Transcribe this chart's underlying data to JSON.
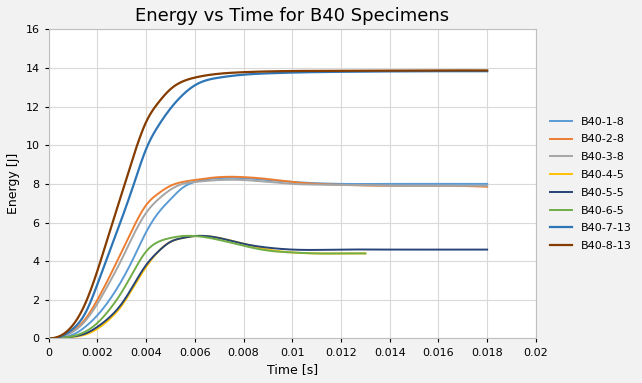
{
  "title": "Energy vs Time for B40 Specimens",
  "xlabel": "Time [s]",
  "ylabel": "Energy [J]",
  "xlim": [
    0,
    0.02
  ],
  "ylim": [
    0,
    16
  ],
  "xticks": [
    0,
    0.002,
    0.004,
    0.006,
    0.008,
    0.01,
    0.012,
    0.014,
    0.016,
    0.018,
    0.02
  ],
  "yticks": [
    0,
    2,
    4,
    6,
    8,
    10,
    12,
    14,
    16
  ],
  "series": [
    {
      "label": "B40-1-8",
      "color": "#5B9BD5",
      "linewidth": 1.4,
      "data_t": [
        0,
        0.0005,
        0.001,
        0.0015,
        0.002,
        0.0025,
        0.003,
        0.0035,
        0.004,
        0.0045,
        0.005,
        0.0055,
        0.006,
        0.007,
        0.008,
        0.009,
        0.01,
        0.012,
        0.014,
        0.016,
        0.018
      ],
      "data_e": [
        0,
        0.05,
        0.2,
        0.6,
        1.2,
        2.0,
        3.0,
        4.2,
        5.5,
        6.5,
        7.2,
        7.8,
        8.1,
        8.3,
        8.3,
        8.2,
        8.1,
        8.0,
        8.0,
        8.0,
        8.0
      ]
    },
    {
      "label": "B40-2-8",
      "color": "#ED7D31",
      "linewidth": 1.4,
      "data_t": [
        0,
        0.0005,
        0.001,
        0.0015,
        0.002,
        0.0025,
        0.003,
        0.0035,
        0.004,
        0.0045,
        0.005,
        0.0055,
        0.006,
        0.007,
        0.008,
        0.009,
        0.01,
        0.012,
        0.014,
        0.016,
        0.018
      ],
      "data_e": [
        0,
        0.1,
        0.4,
        1.0,
        2.0,
        3.2,
        4.5,
        5.8,
        6.9,
        7.5,
        7.9,
        8.1,
        8.2,
        8.35,
        8.35,
        8.25,
        8.1,
        7.95,
        7.9,
        7.9,
        7.85
      ]
    },
    {
      "label": "B40-3-8",
      "color": "#A5A5A5",
      "linewidth": 1.4,
      "data_t": [
        0,
        0.0005,
        0.001,
        0.0015,
        0.002,
        0.0025,
        0.003,
        0.0035,
        0.004,
        0.0045,
        0.005,
        0.0055,
        0.006,
        0.007,
        0.008,
        0.009,
        0.01,
        0.012,
        0.014,
        0.016,
        0.018
      ],
      "data_e": [
        0,
        0.08,
        0.35,
        0.9,
        1.8,
        2.9,
        4.1,
        5.4,
        6.5,
        7.2,
        7.7,
        8.0,
        8.1,
        8.2,
        8.2,
        8.1,
        8.0,
        7.95,
        7.9,
        7.9,
        7.9
      ]
    },
    {
      "label": "B40-4-5",
      "color": "#FFC000",
      "linewidth": 1.4,
      "data_t": [
        0,
        0.0005,
        0.001,
        0.0015,
        0.002,
        0.0025,
        0.003,
        0.0035,
        0.004,
        0.0045,
        0.005,
        0.0055,
        0.006,
        0.007,
        0.008,
        0.009,
        0.01,
        0.011,
        0.012,
        0.013
      ],
      "data_e": [
        0,
        0.02,
        0.08,
        0.2,
        0.5,
        1.0,
        1.7,
        2.7,
        3.7,
        4.5,
        5.0,
        5.2,
        5.3,
        5.2,
        4.9,
        4.6,
        4.45,
        4.4,
        4.4,
        4.4
      ]
    },
    {
      "label": "B40-5-5",
      "color": "#264478",
      "linewidth": 1.4,
      "data_t": [
        0,
        0.0005,
        0.001,
        0.0015,
        0.002,
        0.0025,
        0.003,
        0.0035,
        0.004,
        0.0045,
        0.005,
        0.0055,
        0.006,
        0.007,
        0.008,
        0.009,
        0.01,
        0.012,
        0.014,
        0.016,
        0.018
      ],
      "data_e": [
        0,
        0.02,
        0.1,
        0.25,
        0.6,
        1.1,
        1.8,
        2.8,
        3.8,
        4.5,
        5.0,
        5.2,
        5.3,
        5.2,
        4.9,
        4.7,
        4.6,
        4.6,
        4.6,
        4.6,
        4.6
      ]
    },
    {
      "label": "B40-6-5",
      "color": "#70AD47",
      "linewidth": 1.4,
      "data_t": [
        0,
        0.0005,
        0.001,
        0.0015,
        0.002,
        0.0025,
        0.003,
        0.0035,
        0.004,
        0.0045,
        0.005,
        0.0055,
        0.006,
        0.007,
        0.008,
        0.009,
        0.01,
        0.011,
        0.012,
        0.013
      ],
      "data_e": [
        0,
        0.03,
        0.12,
        0.35,
        0.8,
        1.5,
        2.4,
        3.5,
        4.5,
        5.0,
        5.2,
        5.3,
        5.3,
        5.1,
        4.8,
        4.55,
        4.45,
        4.4,
        4.4,
        4.4
      ]
    },
    {
      "label": "B40-7-13",
      "color": "#2E75B6",
      "linewidth": 1.6,
      "data_t": [
        0,
        0.0005,
        0.001,
        0.0015,
        0.002,
        0.0025,
        0.003,
        0.0035,
        0.004,
        0.0045,
        0.005,
        0.0055,
        0.006,
        0.007,
        0.008,
        0.009,
        0.01,
        0.012,
        0.014,
        0.016,
        0.018
      ],
      "data_e": [
        0,
        0.1,
        0.5,
        1.3,
        2.8,
        4.5,
        6.2,
        8.0,
        9.8,
        11.0,
        11.9,
        12.6,
        13.1,
        13.5,
        13.65,
        13.72,
        13.76,
        13.8,
        13.82,
        13.83,
        13.83
      ]
    },
    {
      "label": "B40-8-13",
      "color": "#843C00",
      "linewidth": 1.6,
      "data_t": [
        0,
        0.0005,
        0.001,
        0.0015,
        0.002,
        0.0025,
        0.003,
        0.0035,
        0.004,
        0.0045,
        0.005,
        0.0055,
        0.006,
        0.007,
        0.008,
        0.009,
        0.01,
        0.012,
        0.014,
        0.016,
        0.018
      ],
      "data_e": [
        0,
        0.15,
        0.7,
        1.8,
        3.5,
        5.5,
        7.5,
        9.5,
        11.2,
        12.2,
        12.9,
        13.3,
        13.5,
        13.7,
        13.78,
        13.82,
        13.84,
        13.85,
        13.86,
        13.87,
        13.87
      ]
    }
  ],
  "background_color": "#F2F2F2",
  "plot_bg_color": "#FFFFFF",
  "grid_color": "#D9D9D9",
  "title_fontsize": 13,
  "label_fontsize": 9,
  "tick_fontsize": 8,
  "legend_fontsize": 8
}
